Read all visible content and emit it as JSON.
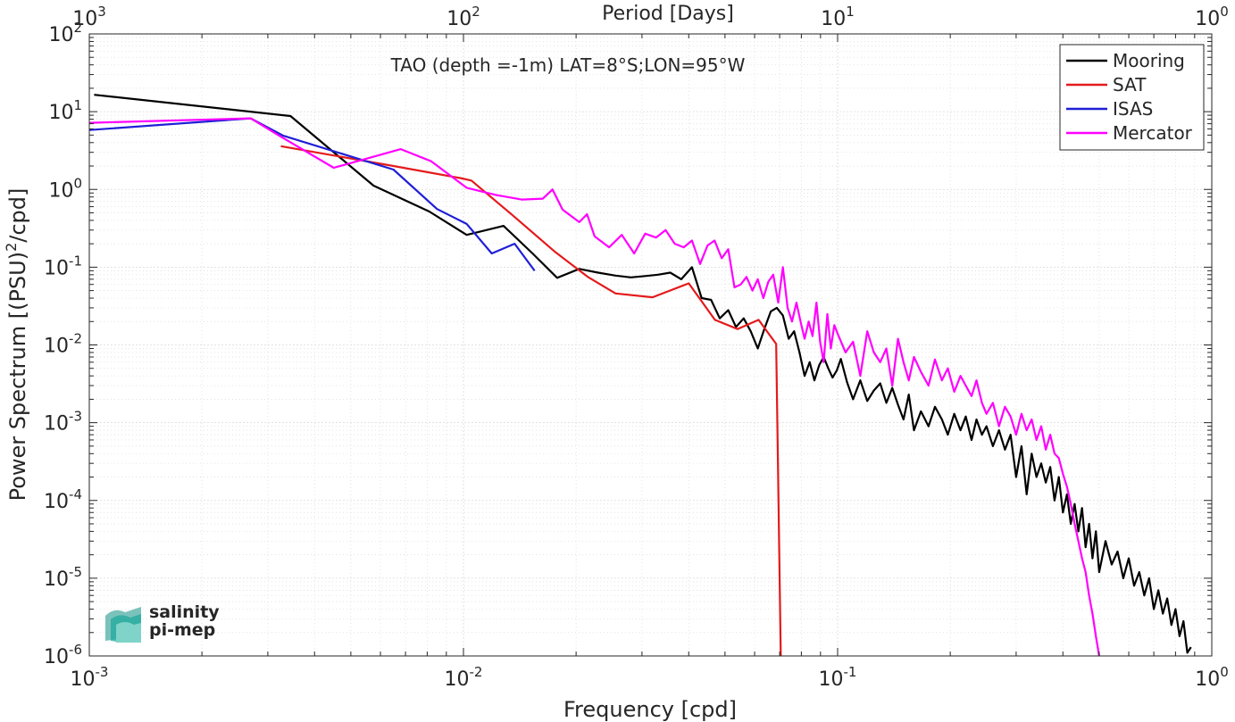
{
  "chart_data": {
    "type": "line",
    "title": "TAO (depth =-1m) LAT=8°S;LON=95°W",
    "xlabel": "Frequency [cpd]",
    "ylabel_main": "Power Spectrum [(PSU)",
    "ylabel_sup": "2",
    "ylabel_tail": "/cpd]",
    "top_axis_label": "Period [Days]",
    "x_scale": "log",
    "y_scale": "log",
    "xlim": [
      0.001,
      1
    ],
    "ylim": [
      1e-06,
      100
    ],
    "grid": true,
    "minor_grid": true,
    "legend_position": "top-right",
    "x_ticks": [
      {
        "base": "10",
        "exp": "-3",
        "value": 0.001
      },
      {
        "base": "10",
        "exp": "-2",
        "value": 0.01
      },
      {
        "base": "10",
        "exp": "-1",
        "value": 0.1
      },
      {
        "base": "10",
        "exp": "0",
        "value": 1
      }
    ],
    "top_ticks": [
      {
        "base": "10",
        "exp": "3",
        "freq": 0.001
      },
      {
        "base": "10",
        "exp": "2",
        "freq": 0.01
      },
      {
        "base": "10",
        "exp": "1",
        "freq": 0.1
      },
      {
        "base": "10",
        "exp": "0",
        "freq": 1
      }
    ],
    "y_ticks": [
      {
        "base": "10",
        "exp": "2",
        "value": 100
      },
      {
        "base": "10",
        "exp": "1",
        "value": 10
      },
      {
        "base": "10",
        "exp": "0",
        "value": 1
      },
      {
        "base": "10",
        "exp": "-1",
        "value": 0.1
      },
      {
        "base": "10",
        "exp": "-2",
        "value": 0.01
      },
      {
        "base": "10",
        "exp": "-3",
        "value": 0.001
      },
      {
        "base": "10",
        "exp": "-4",
        "value": 0.0001
      },
      {
        "base": "10",
        "exp": "-5",
        "value": 1e-05
      },
      {
        "base": "10",
        "exp": "-6",
        "value": 1e-06
      }
    ],
    "series": [
      {
        "name": "Mooring",
        "color": "#000000",
        "x": [
          0.00103,
          0.00345,
          0.00575,
          0.0081,
          0.0102,
          0.0128,
          0.0153,
          0.0178,
          0.0204,
          0.0229,
          0.0255,
          0.028,
          0.0306,
          0.0331,
          0.0357,
          0.0382,
          0.0408,
          0.0433,
          0.0459,
          0.0484,
          0.051,
          0.0535,
          0.0561,
          0.0586,
          0.0612,
          0.0637,
          0.0663,
          0.0688,
          0.0714,
          0.074,
          0.0765,
          0.0791,
          0.0816,
          0.0842,
          0.0867,
          0.0893,
          0.0918,
          0.0944,
          0.0969,
          0.0995,
          0.102,
          0.106,
          0.11,
          0.115,
          0.12,
          0.125,
          0.13,
          0.135,
          0.14,
          0.145,
          0.15,
          0.155,
          0.16,
          0.167,
          0.175,
          0.182,
          0.19,
          0.197,
          0.205,
          0.213,
          0.22,
          0.228,
          0.235,
          0.243,
          0.25,
          0.26,
          0.27,
          0.28,
          0.29,
          0.3,
          0.31,
          0.32,
          0.33,
          0.34,
          0.35,
          0.36,
          0.37,
          0.38,
          0.39,
          0.4,
          0.41,
          0.42,
          0.43,
          0.44,
          0.45,
          0.46,
          0.47,
          0.48,
          0.49,
          0.5,
          0.52,
          0.54,
          0.56,
          0.58,
          0.6,
          0.62,
          0.64,
          0.66,
          0.68,
          0.7,
          0.72,
          0.74,
          0.76,
          0.78,
          0.8,
          0.82,
          0.84,
          0.86,
          0.88
        ],
        "y": [
          16.5,
          8.8,
          1.12,
          0.52,
          0.26,
          0.34,
          0.15,
          0.073,
          0.095,
          0.085,
          0.078,
          0.074,
          0.077,
          0.08,
          0.085,
          0.07,
          0.1,
          0.04,
          0.038,
          0.022,
          0.028,
          0.017,
          0.022,
          0.015,
          0.009,
          0.016,
          0.027,
          0.03,
          0.024,
          0.012,
          0.015,
          0.008,
          0.004,
          0.006,
          0.0035,
          0.0055,
          0.007,
          0.005,
          0.0038,
          0.0047,
          0.0066,
          0.0033,
          0.002,
          0.0035,
          0.0019,
          0.0026,
          0.0032,
          0.0018,
          0.0028,
          0.0017,
          0.0011,
          0.0023,
          0.0008,
          0.0014,
          0.0009,
          0.0016,
          0.0011,
          0.0007,
          0.0013,
          0.0008,
          0.0012,
          0.0006,
          0.0011,
          0.0007,
          0.0009,
          0.0005,
          0.0008,
          0.00045,
          0.0007,
          0.0002,
          0.0005,
          0.00012,
          0.0004,
          0.0002,
          0.0003,
          0.00017,
          0.00027,
          0.0001,
          0.0002,
          7e-05,
          0.00012,
          5e-05,
          9e-05,
          4e-05,
          8e-05,
          2.5e-05,
          5e-05,
          1.8e-05,
          4e-05,
          1.2e-05,
          3e-05,
          1.5e-05,
          2.2e-05,
          1e-05,
          1.8e-05,
          8e-06,
          1.2e-05,
          6e-06,
          1e-05,
          4e-06,
          7e-06,
          3.5e-06,
          5.5e-06,
          2.5e-06,
          4e-06,
          1.8e-06,
          2.8e-06,
          1.1e-06,
          1.3e-06
        ]
      },
      {
        "name": "SAT",
        "color": "#e41a1c",
        "x": [
          0.00325,
          0.0065,
          0.0098,
          0.0105,
          0.0135,
          0.0175,
          0.0215,
          0.0255,
          0.032,
          0.04,
          0.047,
          0.054,
          0.0615,
          0.0685,
          0.0705
        ],
        "y": [
          3.6,
          2.0,
          1.4,
          1.3,
          0.47,
          0.16,
          0.075,
          0.046,
          0.041,
          0.062,
          0.021,
          0.016,
          0.021,
          0.0103,
          9e-07
        ]
      },
      {
        "name": "ISAS",
        "color": "#1f1fd6",
        "x": [
          0.001,
          0.0027,
          0.0033,
          0.0065,
          0.0085,
          0.0102,
          0.0119,
          0.0137,
          0.0155
        ],
        "y": [
          5.8,
          8.2,
          4.9,
          1.8,
          0.56,
          0.36,
          0.15,
          0.2,
          0.09
        ]
      },
      {
        "name": "Mercator",
        "color": "#ff00ff",
        "x": [
          0.001,
          0.0027,
          0.0032,
          0.0045,
          0.0068,
          0.0082,
          0.0102,
          0.0122,
          0.0143,
          0.0163,
          0.0173,
          0.0184,
          0.0204,
          0.0214,
          0.0224,
          0.0245,
          0.0265,
          0.0286,
          0.0306,
          0.0327,
          0.0347,
          0.0367,
          0.0388,
          0.0408,
          0.0429,
          0.0449,
          0.0469,
          0.049,
          0.051,
          0.053,
          0.0551,
          0.0571,
          0.0592,
          0.0612,
          0.0633,
          0.0653,
          0.0673,
          0.0694,
          0.0714,
          0.0735,
          0.0755,
          0.0776,
          0.0796,
          0.0816,
          0.0837,
          0.0857,
          0.0878,
          0.0898,
          0.0918,
          0.0939,
          0.0959,
          0.098,
          0.1,
          0.105,
          0.11,
          0.115,
          0.12,
          0.125,
          0.13,
          0.135,
          0.14,
          0.145,
          0.15,
          0.155,
          0.16,
          0.167,
          0.175,
          0.182,
          0.19,
          0.197,
          0.205,
          0.213,
          0.22,
          0.228,
          0.235,
          0.243,
          0.25,
          0.26,
          0.27,
          0.28,
          0.29,
          0.3,
          0.31,
          0.32,
          0.33,
          0.34,
          0.35,
          0.36,
          0.37,
          0.38,
          0.39,
          0.4,
          0.41,
          0.42,
          0.43,
          0.44,
          0.45,
          0.46,
          0.47,
          0.48,
          0.49,
          0.5
        ],
        "y": [
          7.2,
          8.2,
          5.0,
          1.9,
          3.3,
          2.3,
          1.05,
          0.85,
          0.74,
          0.76,
          1.0,
          0.55,
          0.38,
          0.48,
          0.25,
          0.18,
          0.26,
          0.15,
          0.27,
          0.24,
          0.3,
          0.2,
          0.18,
          0.22,
          0.11,
          0.19,
          0.22,
          0.13,
          0.17,
          0.055,
          0.06,
          0.075,
          0.05,
          0.07,
          0.04,
          0.065,
          0.08,
          0.035,
          0.1,
          0.03,
          0.02,
          0.035,
          0.02,
          0.012,
          0.02,
          0.013,
          0.035,
          0.011,
          0.006,
          0.025,
          0.009,
          0.018,
          0.014,
          0.008,
          0.011,
          0.004,
          0.015,
          0.008,
          0.006,
          0.009,
          0.003,
          0.012,
          0.006,
          0.0035,
          0.007,
          0.0045,
          0.003,
          0.0065,
          0.0035,
          0.005,
          0.0025,
          0.004,
          0.003,
          0.0022,
          0.0035,
          0.0018,
          0.0013,
          0.0018,
          0.0009,
          0.0016,
          0.0012,
          0.0007,
          0.0013,
          0.0008,
          0.0011,
          0.0006,
          0.0009,
          0.00045,
          0.0007,
          0.0004,
          0.00035,
          0.00022,
          0.00015,
          9e-05,
          5e-05,
          3e-05,
          1.8e-05,
          1.2e-05,
          6e-06,
          3.5e-06,
          1.8e-06,
          1e-06
        ]
      }
    ],
    "logo": {
      "line1": "salinity",
      "line2": "pi-mep",
      "color": "#1aa89a"
    }
  }
}
